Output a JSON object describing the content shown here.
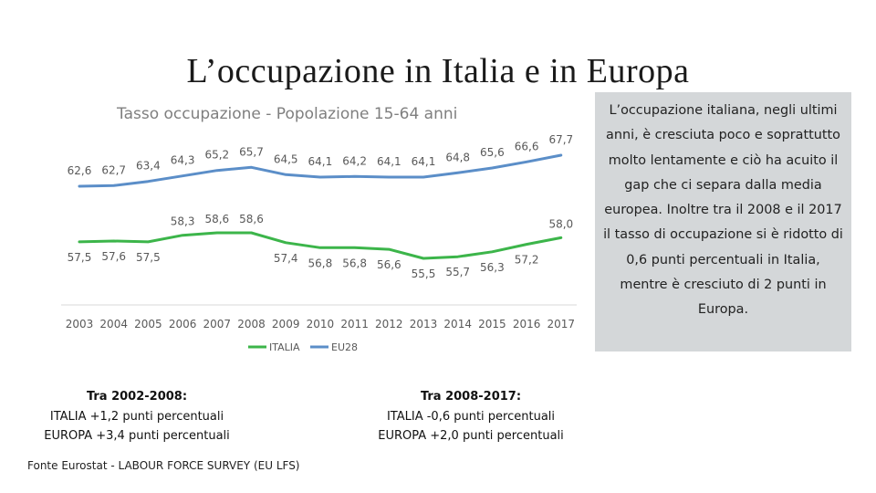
{
  "slide_title": "L’occupazione in Italia e in Europa",
  "colors": {
    "italia": "#3cb54a",
    "eu28": "#5b8ec8",
    "axis": "#d9d9d9",
    "label": "#595959",
    "box": "#d4d7d9"
  },
  "chart_data": {
    "type": "line",
    "title": "Tasso occupazione - Popolazione 15-64 anni",
    "xlabel": "",
    "ylabel": "",
    "categories": [
      "2003",
      "2004",
      "2005",
      "2006",
      "2007",
      "2008",
      "2009",
      "2010",
      "2011",
      "2012",
      "2013",
      "2014",
      "2015",
      "2016",
      "2017"
    ],
    "series": [
      {
        "name": "ITALIA",
        "values": [
          57.5,
          57.6,
          57.5,
          58.3,
          58.6,
          58.6,
          57.4,
          56.8,
          56.8,
          56.6,
          55.5,
          55.7,
          56.3,
          57.2,
          58.0
        ],
        "labels": [
          "57,5",
          "57,6",
          "57,5",
          "58,3",
          "58,6",
          "58,6",
          "57,4",
          "56,8",
          "56,8",
          "56,6",
          "55,5",
          "55,7",
          "56,3",
          "57,2",
          "58,0"
        ]
      },
      {
        "name": "EU28",
        "values": [
          62.6,
          62.7,
          63.4,
          64.3,
          65.2,
          65.7,
          64.5,
          64.1,
          64.2,
          64.1,
          64.1,
          64.8,
          65.6,
          66.6,
          67.7
        ],
        "labels": [
          "62,6",
          "62,7",
          "63,4",
          "64,3",
          "65,2",
          "65,7",
          "64,5",
          "64,1",
          "64,2",
          "64,1",
          "64,1",
          "64,8",
          "65,6",
          "66,6",
          "67,7"
        ]
      }
    ],
    "legend": "bottom-center"
  },
  "side_note": "L’occupazione italiana, negli ultimi anni, è cresciuta poco e soprattutto molto lentamente e ciò ha acuito il gap che ci separa dalla media europea. Inoltre tra il 2008 e il 2017 il tasso di occupazione si è ridotto di 0,6 punti percentuali in Italia, mentre è cresciuto di 2 punti in Europa.",
  "summary_2002_2008": {
    "title": "Tra 2002-2008:",
    "italia": "ITALIA +1,2 punti percentuali",
    "europa": "EUROPA +3,4 punti percentuali"
  },
  "summary_2008_2017": {
    "title": "Tra 2008-2017:",
    "italia": "ITALIA -0,6 punti percentuali",
    "europa": "EUROPA +2,0 punti percentuali"
  },
  "source": "Fonte Eurostat - LABOUR FORCE SURVEY (EU LFS)"
}
